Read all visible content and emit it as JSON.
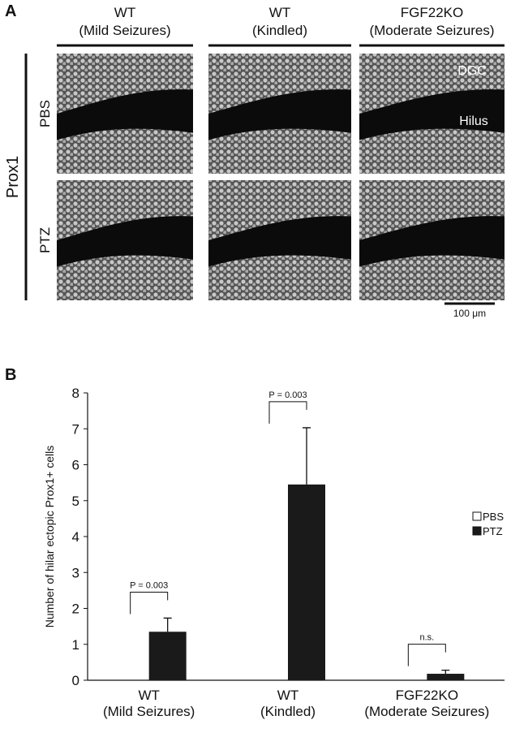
{
  "panel_a": {
    "label": "A",
    "columns": [
      [
        "WT",
        "(Mild Seizures)"
      ],
      [
        "WT",
        "(Kindled)"
      ],
      [
        "FGF22KO",
        "(Moderate Seizures)"
      ]
    ],
    "stain": "Prox1",
    "rows": [
      "PBS",
      "PTZ"
    ],
    "regions": [
      "DGC",
      "Hilus"
    ],
    "scale_bar": "100 μm"
  },
  "chart_data": {
    "type": "bar",
    "panel_label": "B",
    "y_label": "Number of hilar ectopic Prox1+ cells",
    "categories": [
      "WT\n(Mild Seizures)",
      "WT\n(Kindled)",
      "FGF22KO\n(Moderate Seizures)"
    ],
    "series": [
      {
        "name": "PBS",
        "color": "#ffffff",
        "values": [
          0,
          0,
          0
        ]
      },
      {
        "name": "PTZ",
        "color": "#1a1a1a",
        "values": [
          1.35,
          5.45,
          0.18
        ],
        "errors": [
          0.38,
          1.58,
          0.1
        ]
      }
    ],
    "annotations": [
      "P = 0.003",
      "P = 0.003",
      "n.s."
    ],
    "ylim": [
      0,
      8
    ],
    "yticks": [
      0,
      1,
      2,
      3,
      4,
      5,
      6,
      7,
      8
    ],
    "legend": "right"
  }
}
